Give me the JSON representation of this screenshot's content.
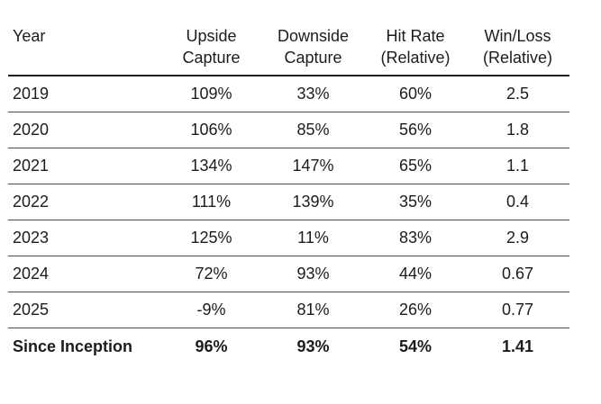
{
  "chart_data": {
    "type": "table",
    "columns": [
      "Year",
      "Upside Capture",
      "Downside Capture",
      "Hit Rate (Relative)",
      "Win/Loss (Relative)"
    ],
    "rows": [
      [
        "2019",
        "109%",
        "33%",
        "60%",
        "2.5"
      ],
      [
        "2020",
        "106%",
        "85%",
        "56%",
        "1.8"
      ],
      [
        "2021",
        "134%",
        "147%",
        "65%",
        "1.1"
      ],
      [
        "2022",
        "111%",
        "139%",
        "35%",
        "0.4"
      ],
      [
        "2023",
        "125%",
        "11%",
        "83%",
        "2.9"
      ],
      [
        "2024",
        "72%",
        "93%",
        "44%",
        "0.67"
      ],
      [
        "2025",
        "-9%",
        "81%",
        "26%",
        "0.77"
      ],
      [
        "Since Inception",
        "96%",
        "93%",
        "54%",
        "1.41"
      ]
    ],
    "layout": {
      "header_rule": "dark 2px below header",
      "row_rules": "thin gray between rows, none after last row",
      "value_alignment": "center",
      "year_alignment": "left",
      "total_row_style": "bold"
    }
  },
  "colors": {
    "background": "#ffffff",
    "text": "#1c1c1c",
    "header_rule": "#1f1f1f",
    "row_rule": "#4d4d4d"
  }
}
